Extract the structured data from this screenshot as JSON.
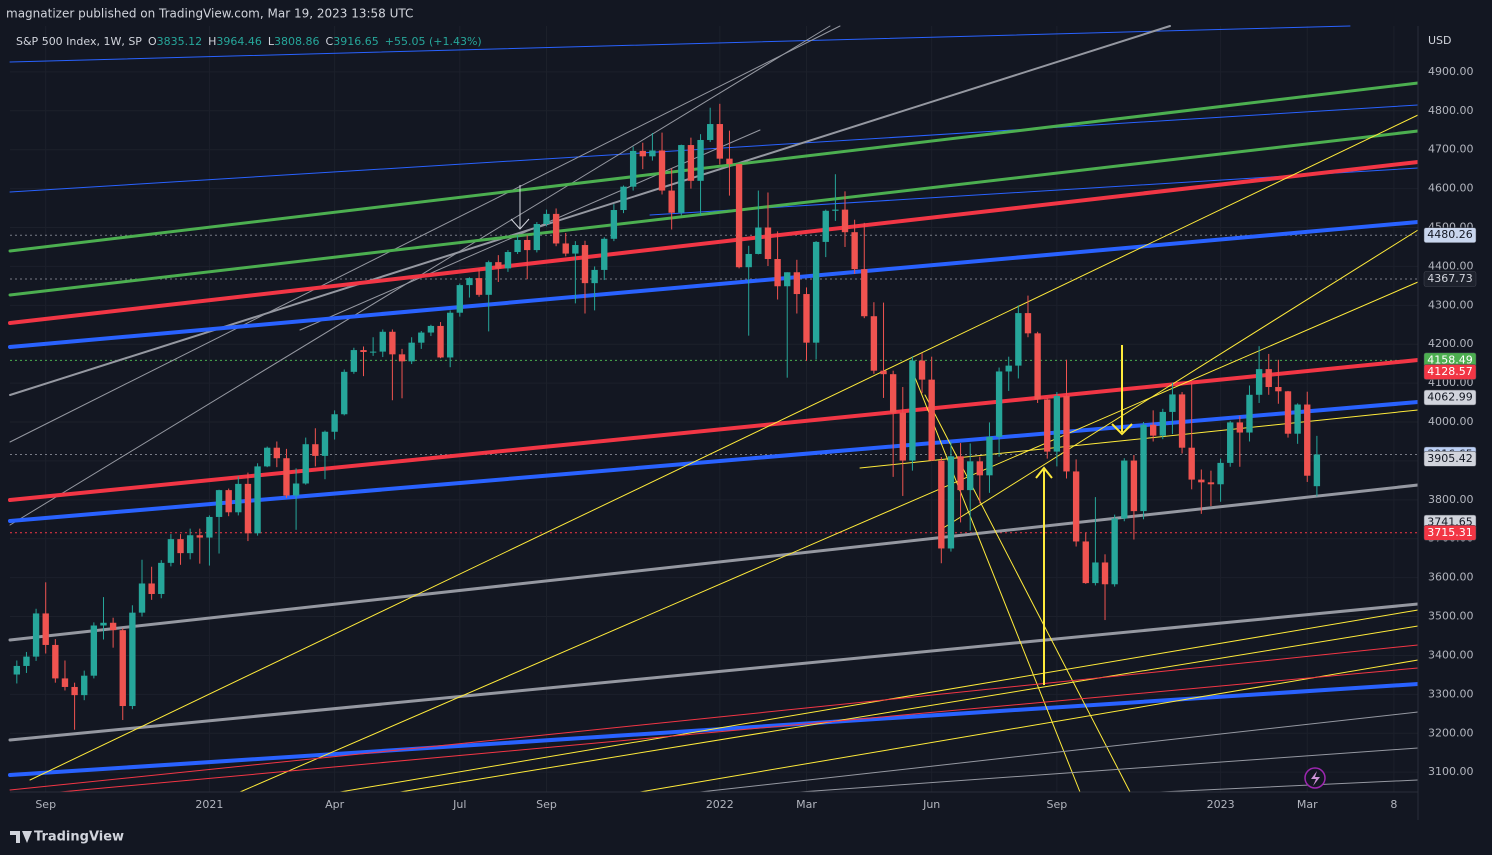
{
  "chart_data": {
    "type": "candlestick",
    "published": "magnatizer published on TradingView.com, Mar 19, 2023 13:58 UTC",
    "title": "S&P 500 Index, 1W, SP",
    "ohlc_legend": [
      {
        "key": "O",
        "value": 3835.12
      },
      {
        "key": "H",
        "value": 3964.46
      },
      {
        "key": "L",
        "value": 3808.86
      },
      {
        "key": "C",
        "value": 3916.65
      }
    ],
    "change": {
      "value": 55.05,
      "label": "+55.05 (+1.43%)"
    },
    "currency": "USD",
    "brand": "TradingView",
    "up_color": "#26a69a",
    "down_color": "#ef5350",
    "grid": true,
    "ylim": [
      3049,
      5018
    ],
    "yticks": [
      {
        "value": 3100,
        "label": "3100.00"
      },
      {
        "value": 3200,
        "label": "3200.00"
      },
      {
        "value": 3300,
        "label": "3300.00"
      },
      {
        "value": 3400,
        "label": "3400.00"
      },
      {
        "value": 3500,
        "label": "3500.00"
      },
      {
        "value": 3600,
        "label": "3600.00"
      },
      {
        "value": 3700,
        "label": "3700.00"
      },
      {
        "value": 3800,
        "label": "3800.00"
      },
      {
        "value": 3900,
        "label": "3900.00"
      },
      {
        "value": 4000,
        "label": "4000.00"
      },
      {
        "value": 4100,
        "label": "4100.00"
      },
      {
        "value": 4200,
        "label": "4200.00"
      },
      {
        "value": 4300,
        "label": "4300.00"
      },
      {
        "value": 4400,
        "label": "4400.00"
      },
      {
        "value": 4500,
        "label": "4500.00"
      },
      {
        "value": 4600,
        "label": "4600.00"
      },
      {
        "value": 4700,
        "label": "4700.00"
      },
      {
        "value": 4800,
        "label": "4800.00"
      },
      {
        "value": 4900,
        "label": "4900.00"
      }
    ],
    "price_tags": [
      {
        "value": 4480.26,
        "bg": "#c9d6ee",
        "fg": "#131722",
        "line": "#787b86"
      },
      {
        "value": 4367.73,
        "bg": "#1e222d",
        "fg": "#d1d4dc",
        "line": "#787b86"
      },
      {
        "value": 4158.49,
        "bg": "#4caf50",
        "fg": "#ffffff",
        "line": "#4caf50"
      },
      {
        "value": 4128.57,
        "bg": "#f23645",
        "fg": "#ffffff"
      },
      {
        "value": 4062.99,
        "bg": "#d1d4dc",
        "fg": "#131722"
      },
      {
        "value": 3916.65,
        "bg": "#bcd0f5",
        "fg": "#131722",
        "line": "#787b86"
      },
      {
        "value": 3905.42,
        "bg": "#d1d4dc",
        "fg": "#131722"
      },
      {
        "value": 3741.65,
        "bg": "#d1d4dc",
        "fg": "#131722"
      },
      {
        "value": 3715.31,
        "bg": "#f23645",
        "fg": "#ffffff",
        "line": "#f23645"
      }
    ],
    "categories": [
      null,
      null,
      null,
      "Sep",
      null,
      null,
      null,
      null,
      null,
      null,
      null,
      null,
      null,
      null,
      null,
      null,
      null,
      null,
      null,
      null,
      "2021",
      null,
      null,
      null,
      null,
      null,
      null,
      null,
      null,
      null,
      null,
      null,
      null,
      "Apr",
      null,
      null,
      null,
      null,
      null,
      null,
      null,
      null,
      null,
      null,
      null,
      null,
      "Jul",
      null,
      null,
      null,
      null,
      null,
      null,
      null,
      null,
      "Sep",
      null,
      null,
      null,
      null,
      null,
      null,
      null,
      null,
      null,
      null,
      null,
      null,
      null,
      null,
      null,
      null,
      null,
      "2022",
      null,
      null,
      null,
      null,
      null,
      null,
      null,
      null,
      "Mar",
      null,
      null,
      null,
      null,
      null,
      null,
      null,
      null,
      null,
      null,
      null,
      null,
      "Jun",
      null,
      null,
      null,
      null,
      null,
      null,
      null,
      null,
      null,
      null,
      null,
      null,
      "Sep",
      null,
      null,
      null,
      null,
      null,
      null,
      null,
      null,
      null,
      null,
      null,
      null,
      null,
      null,
      null,
      null,
      "2023",
      null,
      null,
      null,
      null,
      null,
      null,
      null,
      null,
      "Mar",
      null,
      null,
      null,
      null,
      null,
      null,
      null,
      null,
      "8",
      null,
      null
    ],
    "ohlc": [
      [
        3351,
        3387,
        3328,
        3373
      ],
      [
        3373,
        3409,
        3355,
        3397
      ],
      [
        3397,
        3520,
        3386,
        3508
      ],
      [
        3508,
        3588,
        3405,
        3427
      ],
      [
        3427,
        3442,
        3330,
        3341
      ],
      [
        3341,
        3387,
        3310,
        3319
      ],
      [
        3319,
        3330,
        3209,
        3298
      ],
      [
        3298,
        3361,
        3285,
        3348
      ],
      [
        3348,
        3485,
        3341,
        3477
      ],
      [
        3477,
        3550,
        3441,
        3484
      ],
      [
        3484,
        3497,
        3420,
        3465
      ],
      [
        3465,
        3470,
        3234,
        3270
      ],
      [
        3270,
        3529,
        3262,
        3510
      ],
      [
        3510,
        3646,
        3500,
        3585
      ],
      [
        3585,
        3628,
        3543,
        3558
      ],
      [
        3558,
        3645,
        3547,
        3638
      ],
      [
        3638,
        3712,
        3629,
        3699
      ],
      [
        3699,
        3712,
        3633,
        3663
      ],
      [
        3663,
        3726,
        3647,
        3709
      ],
      [
        3709,
        3726,
        3636,
        3703
      ],
      [
        3703,
        3760,
        3631,
        3756
      ],
      [
        3756,
        3826,
        3662,
        3825
      ],
      [
        3825,
        3829,
        3758,
        3768
      ],
      [
        3768,
        3860,
        3760,
        3841
      ],
      [
        3841,
        3870,
        3694,
        3714
      ],
      [
        3714,
        3894,
        3708,
        3886
      ],
      [
        3886,
        3937,
        3884,
        3934
      ],
      [
        3934,
        3950,
        3884,
        3907
      ],
      [
        3907,
        3931,
        3805,
        3811
      ],
      [
        3811,
        3881,
        3723,
        3842
      ],
      [
        3842,
        3960,
        3839,
        3943
      ],
      [
        3943,
        3984,
        3886,
        3913
      ],
      [
        3913,
        3978,
        3853,
        3975
      ],
      [
        3975,
        4030,
        3955,
        4020
      ],
      [
        4020,
        4135,
        4017,
        4129
      ],
      [
        4129,
        4191,
        4124,
        4185
      ],
      [
        4185,
        4194,
        4118,
        4180
      ],
      [
        4180,
        4218,
        4170,
        4181
      ],
      [
        4181,
        4238,
        4167,
        4232
      ],
      [
        4232,
        4238,
        4056,
        4174
      ],
      [
        4174,
        4188,
        4061,
        4156
      ],
      [
        4156,
        4218,
        4149,
        4204
      ],
      [
        4204,
        4234,
        4188,
        4230
      ],
      [
        4230,
        4250,
        4221,
        4247
      ],
      [
        4247,
        4257,
        4164,
        4166
      ],
      [
        4166,
        4287,
        4141,
        4281
      ],
      [
        4281,
        4356,
        4271,
        4352
      ],
      [
        4352,
        4372,
        4320,
        4370
      ],
      [
        4370,
        4393,
        4322,
        4327
      ],
      [
        4327,
        4415,
        4233,
        4411
      ],
      [
        4411,
        4429,
        4360,
        4395
      ],
      [
        4395,
        4442,
        4386,
        4437
      ],
      [
        4437,
        4480,
        4432,
        4468
      ],
      [
        4468,
        4480,
        4367,
        4442
      ],
      [
        4442,
        4514,
        4436,
        4509
      ],
      [
        4509,
        4546,
        4503,
        4535
      ],
      [
        4535,
        4549,
        4452,
        4459
      ],
      [
        4459,
        4486,
        4426,
        4433
      ],
      [
        4433,
        4465,
        4305,
        4455
      ],
      [
        4455,
        4466,
        4279,
        4357
      ],
      [
        4357,
        4400,
        4287,
        4391
      ],
      [
        4391,
        4475,
        4365,
        4471
      ],
      [
        4471,
        4560,
        4465,
        4545
      ],
      [
        4545,
        4608,
        4537,
        4605
      ],
      [
        4605,
        4708,
        4595,
        4697
      ],
      [
        4697,
        4718,
        4650,
        4683
      ],
      [
        4683,
        4743,
        4672,
        4698
      ],
      [
        4698,
        4744,
        4585,
        4595
      ],
      [
        4595,
        4652,
        4495,
        4538
      ],
      [
        4538,
        4713,
        4531,
        4712
      ],
      [
        4712,
        4731,
        4600,
        4620
      ],
      [
        4620,
        4740,
        4531,
        4725
      ],
      [
        4725,
        4808,
        4720,
        4766
      ],
      [
        4766,
        4818,
        4662,
        4677
      ],
      [
        4677,
        4749,
        4582,
        4663
      ],
      [
        4663,
        4664,
        4395,
        4398
      ],
      [
        4398,
        4453,
        4222,
        4432
      ],
      [
        4432,
        4595,
        4431,
        4500
      ],
      [
        4500,
        4590,
        4401,
        4419
      ],
      [
        4419,
        4490,
        4315,
        4349
      ],
      [
        4349,
        4385,
        4114,
        4385
      ],
      [
        4385,
        4417,
        4279,
        4329
      ],
      [
        4329,
        4346,
        4157,
        4204
      ],
      [
        4204,
        4465,
        4161,
        4463
      ],
      [
        4463,
        4546,
        4424,
        4543
      ],
      [
        4543,
        4637,
        4517,
        4546
      ],
      [
        4546,
        4593,
        4450,
        4488
      ],
      [
        4488,
        4520,
        4381,
        4393
      ],
      [
        4393,
        4512,
        4267,
        4272
      ],
      [
        4272,
        4308,
        4124,
        4132
      ],
      [
        4132,
        4307,
        4062,
        4123
      ],
      [
        4123,
        4132,
        3859,
        4024
      ],
      [
        4024,
        4090,
        3810,
        3901
      ],
      [
        3901,
        4169,
        3875,
        4158
      ],
      [
        4158,
        4177,
        4074,
        4109
      ],
      [
        4109,
        4168,
        3900,
        3901
      ],
      [
        3901,
        3910,
        3637,
        3675
      ],
      [
        3675,
        3950,
        3667,
        3912
      ],
      [
        3912,
        3946,
        3742,
        3825
      ],
      [
        3825,
        3945,
        3721,
        3899
      ],
      [
        3899,
        3911,
        3791,
        3863
      ],
      [
        3863,
        3999,
        3818,
        3962
      ],
      [
        3962,
        4140,
        3911,
        4130
      ],
      [
        4130,
        4168,
        4080,
        4145
      ],
      [
        4145,
        4300,
        4112,
        4280
      ],
      [
        4280,
        4325,
        4218,
        4228
      ],
      [
        4228,
        4232,
        4049,
        4058
      ],
      [
        4058,
        4062,
        3906,
        3924
      ],
      [
        3924,
        4077,
        3886,
        4067
      ],
      [
        4067,
        4160,
        3855,
        3873
      ],
      [
        3873,
        3904,
        3680,
        3693
      ],
      [
        3693,
        3716,
        3584,
        3586
      ],
      [
        3586,
        3807,
        3580,
        3639
      ],
      [
        3639,
        3660,
        3491,
        3583
      ],
      [
        3583,
        3762,
        3577,
        3752
      ],
      [
        3752,
        3907,
        3745,
        3901
      ],
      [
        3901,
        3915,
        3698,
        3771
      ],
      [
        3771,
        4000,
        3750,
        3993
      ],
      [
        3993,
        4030,
        3950,
        3965
      ],
      [
        3965,
        4034,
        3956,
        4026
      ],
      [
        4026,
        4101,
        3969,
        4071
      ],
      [
        4071,
        4077,
        3919,
        3934
      ],
      [
        3934,
        4101,
        3827,
        3852
      ],
      [
        3852,
        3878,
        3764,
        3845
      ],
      [
        3845,
        3875,
        3784,
        3840
      ],
      [
        3840,
        3906,
        3795,
        3895
      ],
      [
        3895,
        4003,
        3885,
        3999
      ],
      [
        3999,
        4015,
        3885,
        3973
      ],
      [
        3973,
        4094,
        3950,
        4070
      ],
      [
        4070,
        4195,
        4049,
        4136
      ],
      [
        4136,
        4175,
        4070,
        4090
      ],
      [
        4090,
        4160,
        4047,
        4079
      ],
      [
        4079,
        4080,
        3960,
        3970
      ],
      [
        3970,
        4048,
        3944,
        4045
      ],
      [
        4045,
        4078,
        3846,
        3862
      ],
      [
        3835.12,
        3964.46,
        3808.86,
        3916.65
      ]
    ]
  }
}
